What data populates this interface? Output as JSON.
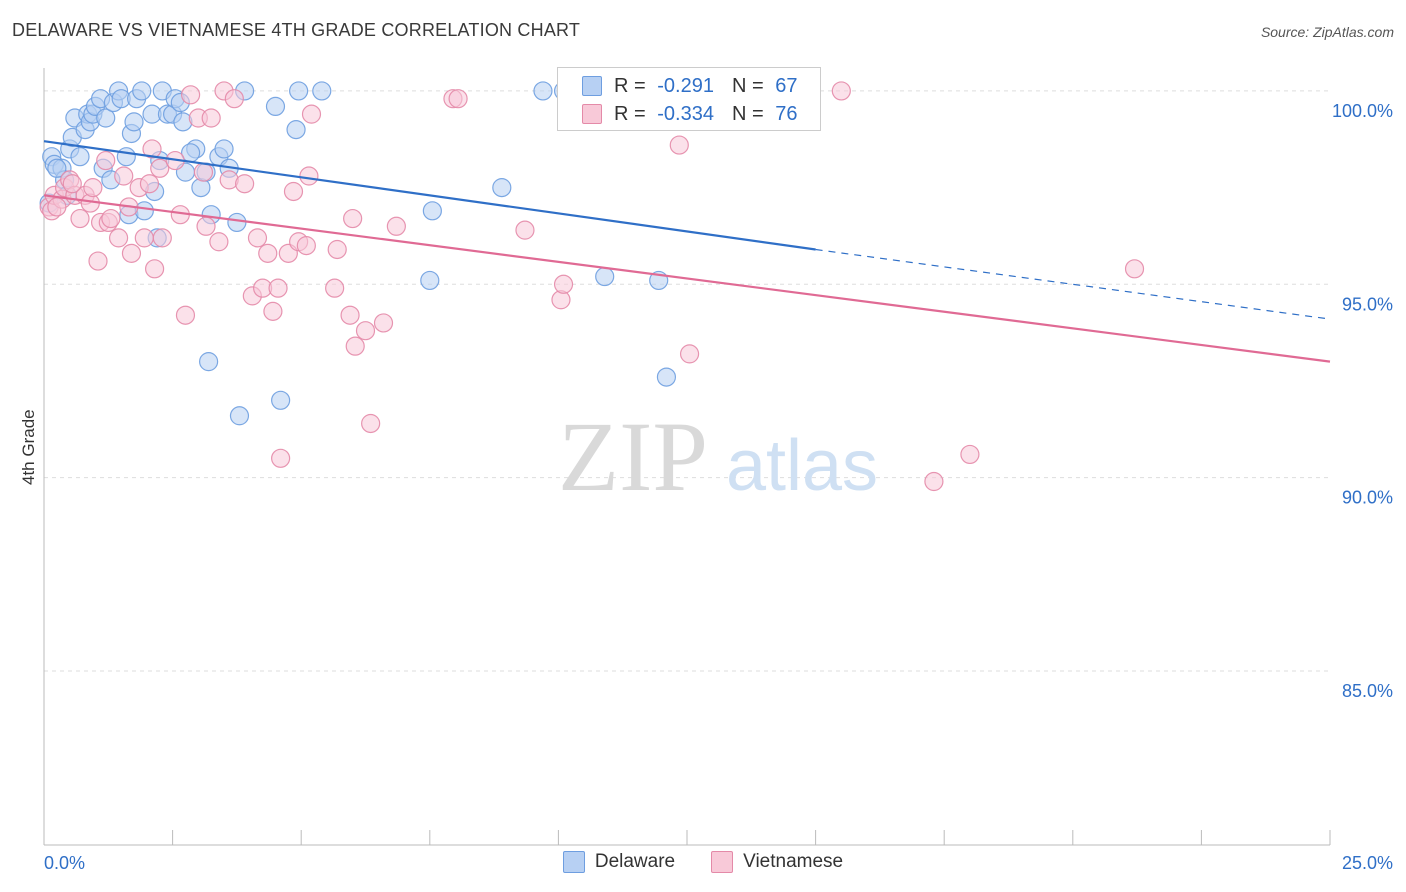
{
  "header": {
    "title": "DELAWARE VS VIETNAMESE 4TH GRADE CORRELATION CHART",
    "source": "Source: ZipAtlas.com"
  },
  "legend": {
    "row1": {
      "r_label": "R =",
      "r_value": "-0.291",
      "n_label": "N =",
      "n_value": "67"
    },
    "row2": {
      "r_label": "R =",
      "r_value": "-0.334",
      "n_label": "N =",
      "n_value": "76"
    }
  },
  "bottom_legend": {
    "delaware": "Delaware",
    "vietnamese": "Vietnamese"
  },
  "colors": {
    "delaware_fill": "#b7d0f3",
    "delaware_stroke": "#6e9ee0",
    "delaware_line": "#2f6fc7",
    "vietnamese_fill": "#f8c9d8",
    "vietnamese_stroke": "#e48aa8",
    "vietnamese_line": "#e06a94",
    "tick_label": "#2f6fc7",
    "grid": "#dddddd"
  },
  "watermark": {
    "zip": "ZIP",
    "atlas": "atlas"
  },
  "chart_data": {
    "type": "scatter",
    "title": "DELAWARE VS VIETNAMESE 4TH GRADE CORRELATION CHART",
    "xlabel": "",
    "ylabel": "4th Grade",
    "xlim": [
      0,
      25
    ],
    "ylim": [
      80.5,
      100.8
    ],
    "x_tick_labels": [
      "0.0%",
      "25.0%"
    ],
    "y_ticks": [
      85,
      90,
      95,
      100
    ],
    "y_tick_labels": [
      "85.0%",
      "90.0%",
      "95.0%",
      "100.0%"
    ],
    "grid": true,
    "legend_position": "top-center",
    "series": [
      {
        "name": "Delaware",
        "r": -0.291,
        "n": 67,
        "trend": {
          "x0": 0,
          "y0": 98.7,
          "x1": 15,
          "y1": 95.9,
          "x_dashed_end": 25,
          "y_dashed_end": 94.1
        },
        "points": [
          [
            0.1,
            97.1
          ],
          [
            0.15,
            98.3
          ],
          [
            0.2,
            98.1
          ],
          [
            0.35,
            98.0
          ],
          [
            0.4,
            97.7
          ],
          [
            0.5,
            98.5
          ],
          [
            0.55,
            98.8
          ],
          [
            0.6,
            99.3
          ],
          [
            0.7,
            98.3
          ],
          [
            0.8,
            99.0
          ],
          [
            0.85,
            99.4
          ],
          [
            0.9,
            99.2
          ],
          [
            0.95,
            99.4
          ],
          [
            1.0,
            99.6
          ],
          [
            1.1,
            99.8
          ],
          [
            1.15,
            98.0
          ],
          [
            1.2,
            99.3
          ],
          [
            1.35,
            99.7
          ],
          [
            1.45,
            100.0
          ],
          [
            1.5,
            99.8
          ],
          [
            1.6,
            98.3
          ],
          [
            1.65,
            96.8
          ],
          [
            1.7,
            98.9
          ],
          [
            1.75,
            99.2
          ],
          [
            1.8,
            99.8
          ],
          [
            1.9,
            100.0
          ],
          [
            1.95,
            96.9
          ],
          [
            2.1,
            99.4
          ],
          [
            2.15,
            97.4
          ],
          [
            2.2,
            96.2
          ],
          [
            2.25,
            98.2
          ],
          [
            2.3,
            100.0
          ],
          [
            2.4,
            99.4
          ],
          [
            2.5,
            99.4
          ],
          [
            2.55,
            99.8
          ],
          [
            2.65,
            99.7
          ],
          [
            2.7,
            99.2
          ],
          [
            2.75,
            97.9
          ],
          [
            2.95,
            98.5
          ],
          [
            3.05,
            97.5
          ],
          [
            3.15,
            97.9
          ],
          [
            3.2,
            93.0
          ],
          [
            3.25,
            96.8
          ],
          [
            3.4,
            98.3
          ],
          [
            3.5,
            98.5
          ],
          [
            3.75,
            96.6
          ],
          [
            3.8,
            91.6
          ],
          [
            3.9,
            100.0
          ],
          [
            4.5,
            99.6
          ],
          [
            4.6,
            92.0
          ],
          [
            4.9,
            99.0
          ],
          [
            4.95,
            100.0
          ],
          [
            5.4,
            100.0
          ],
          [
            7.5,
            95.1
          ],
          [
            7.55,
            96.9
          ],
          [
            8.9,
            97.5
          ],
          [
            9.7,
            100.0
          ],
          [
            10.1,
            100.0
          ],
          [
            10.9,
            95.2
          ],
          [
            11.35,
            100.0
          ],
          [
            11.95,
            95.1
          ],
          [
            12.1,
            92.6
          ],
          [
            0.25,
            98.0
          ],
          [
            0.45,
            97.3
          ],
          [
            1.3,
            97.7
          ],
          [
            3.6,
            98.0
          ],
          [
            2.85,
            98.4
          ]
        ]
      },
      {
        "name": "Vietnamese",
        "r": -0.334,
        "n": 76,
        "trend": {
          "x0": 0,
          "y0": 97.3,
          "x1": 25,
          "y1": 93.0
        },
        "points": [
          [
            0.1,
            97.0
          ],
          [
            0.15,
            96.9
          ],
          [
            0.2,
            97.3
          ],
          [
            0.35,
            97.2
          ],
          [
            0.4,
            97.5
          ],
          [
            0.5,
            97.7
          ],
          [
            0.6,
            97.3
          ],
          [
            0.7,
            96.7
          ],
          [
            0.8,
            97.3
          ],
          [
            0.9,
            97.1
          ],
          [
            0.95,
            97.5
          ],
          [
            1.05,
            95.6
          ],
          [
            1.1,
            96.6
          ],
          [
            1.2,
            98.2
          ],
          [
            1.25,
            96.6
          ],
          [
            1.3,
            96.7
          ],
          [
            1.45,
            96.2
          ],
          [
            1.55,
            97.8
          ],
          [
            1.65,
            97.0
          ],
          [
            1.7,
            95.8
          ],
          [
            1.85,
            97.5
          ],
          [
            1.95,
            96.2
          ],
          [
            2.05,
            97.6
          ],
          [
            2.1,
            98.5
          ],
          [
            2.15,
            95.4
          ],
          [
            2.25,
            98.0
          ],
          [
            2.3,
            96.2
          ],
          [
            2.55,
            98.2
          ],
          [
            2.65,
            96.8
          ],
          [
            2.75,
            94.2
          ],
          [
            2.85,
            99.9
          ],
          [
            3.0,
            99.3
          ],
          [
            3.1,
            97.9
          ],
          [
            3.15,
            96.5
          ],
          [
            3.25,
            99.3
          ],
          [
            3.4,
            96.1
          ],
          [
            3.5,
            100.0
          ],
          [
            3.6,
            97.7
          ],
          [
            3.7,
            99.8
          ],
          [
            3.9,
            97.6
          ],
          [
            4.05,
            94.7
          ],
          [
            4.15,
            96.2
          ],
          [
            4.25,
            94.9
          ],
          [
            4.35,
            95.8
          ],
          [
            4.45,
            94.3
          ],
          [
            4.55,
            94.9
          ],
          [
            4.6,
            90.5
          ],
          [
            4.75,
            95.8
          ],
          [
            4.85,
            97.4
          ],
          [
            4.95,
            96.1
          ],
          [
            5.1,
            96.0
          ],
          [
            5.15,
            97.8
          ],
          [
            5.2,
            99.4
          ],
          [
            5.7,
            95.9
          ],
          [
            5.65,
            94.9
          ],
          [
            5.95,
            94.2
          ],
          [
            6.0,
            96.7
          ],
          [
            6.05,
            93.4
          ],
          [
            6.25,
            93.8
          ],
          [
            6.35,
            91.4
          ],
          [
            6.6,
            94.0
          ],
          [
            6.85,
            96.5
          ],
          [
            7.95,
            99.8
          ],
          [
            8.05,
            99.8
          ],
          [
            9.35,
            96.4
          ],
          [
            10.05,
            94.6
          ],
          [
            10.1,
            95.0
          ],
          [
            11.9,
            99.3
          ],
          [
            12.35,
            98.6
          ],
          [
            12.55,
            93.2
          ],
          [
            15.5,
            100.0
          ],
          [
            17.3,
            89.9
          ],
          [
            18.0,
            90.6
          ],
          [
            21.2,
            95.4
          ],
          [
            0.25,
            97.0
          ],
          [
            0.55,
            97.6
          ]
        ]
      }
    ]
  }
}
